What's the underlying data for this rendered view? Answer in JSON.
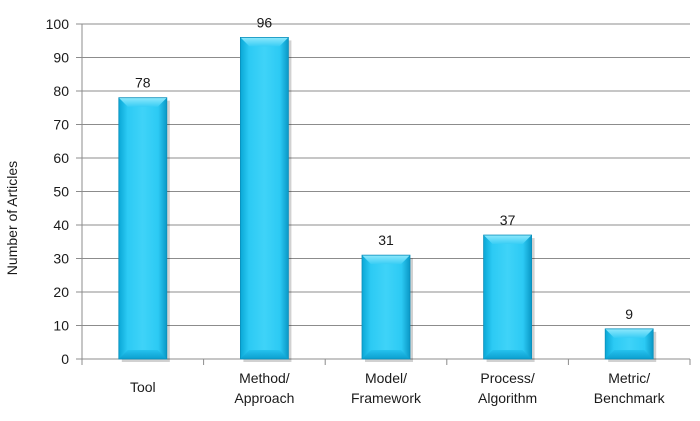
{
  "chart_data": {
    "type": "bar",
    "title": "",
    "xlabel": "",
    "ylabel": "Number of Articles",
    "ylim": [
      0,
      100
    ],
    "ytick_step": 10,
    "grid": true,
    "legend": "none",
    "categories": [
      [
        "Tool"
      ],
      [
        "Method/",
        "Approach"
      ],
      [
        "Model/",
        "Framework"
      ],
      [
        "Process/",
        "Algorithm"
      ],
      [
        "Metric/",
        "Benchmark"
      ]
    ],
    "values": [
      78,
      96,
      31,
      37,
      9
    ],
    "bar_color": "#1fc0ee",
    "bar_color_light": "#7fe2fa",
    "bar_color_dark": "#0a98c6"
  }
}
